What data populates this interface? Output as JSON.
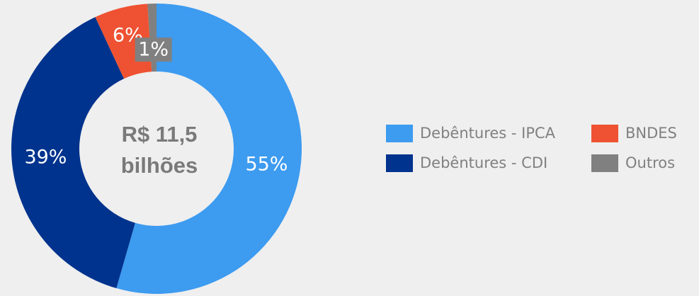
{
  "chart_data": {
    "type": "donut",
    "categories": [
      "Debêntures - IPCA",
      "Debêntures - CDI",
      "BNDES",
      "Outros"
    ],
    "values": [
      55,
      39,
      6,
      1
    ],
    "value_labels": [
      "55%",
      "39%",
      "6%",
      "1%"
    ],
    "colors": [
      "#3d9bf0",
      "#00338d",
      "#ee5232",
      "#808080"
    ],
    "center_label": [
      "R$ 11,5",
      "bilhões"
    ],
    "legend": "right"
  }
}
